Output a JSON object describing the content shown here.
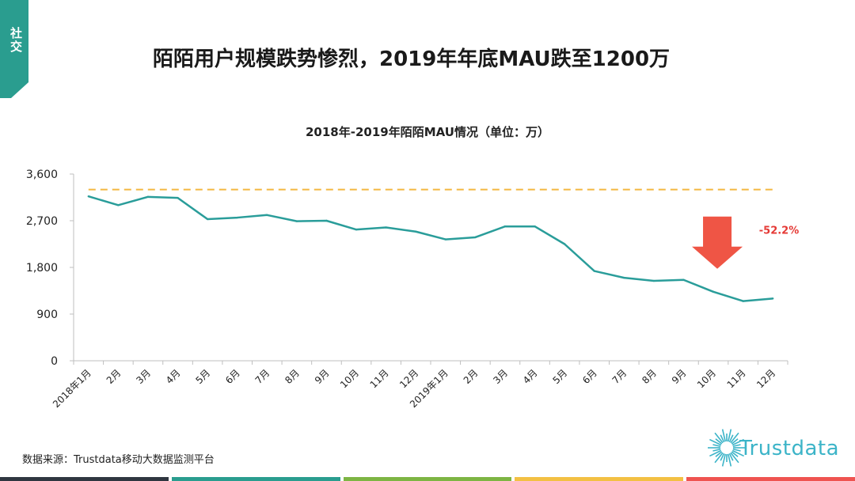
{
  "section_tab": {
    "label": "社交",
    "color": "#2a9d8f"
  },
  "page_title": "陌陌用户规模跌势惨烈，2019年年底MAU跌至1200万",
  "source_text": "数据来源：Trustdata移动大数据监测平台",
  "logo": {
    "text": "Trustdata",
    "color": "#3cb4c8"
  },
  "bottom_bar_colors": [
    "#2f3640",
    "#2a9d8f",
    "#7db543",
    "#f3c043",
    "#ef5350"
  ],
  "chart_data": {
    "type": "line",
    "title": "2018年-2019年陌陌MAU情况（单位：万）",
    "categories": [
      "2018年1月",
      "2月",
      "3月",
      "4月",
      "5月",
      "6月",
      "7月",
      "8月",
      "9月",
      "10月",
      "11月",
      "12月",
      "2019年1月",
      "2月",
      "3月",
      "4月",
      "5月",
      "6月",
      "7月",
      "8月",
      "9月",
      "10月",
      "11月",
      "12月"
    ],
    "series": [
      {
        "values": [
          3170,
          3000,
          3160,
          3140,
          2730,
          2760,
          2810,
          2690,
          2700,
          2530,
          2570,
          2490,
          2340,
          2380,
          2590,
          2590,
          2250,
          1730,
          1600,
          1540,
          1560,
          1330,
          1150,
          1200
        ],
        "color": "#2a9d9a"
      }
    ],
    "reference_line": {
      "value": 3300,
      "color": "#f4b740",
      "style": "dashed"
    },
    "annotation": {
      "text": "-52.2%",
      "color": "#e53935",
      "arrow_color": "#ef5545"
    },
    "ylim": [
      0,
      3600
    ],
    "yticks": [
      0,
      900,
      1800,
      2700,
      3600
    ],
    "ytick_labels": [
      "0",
      "900",
      "1,800",
      "2,700",
      "3,600"
    ],
    "grid": false
  }
}
